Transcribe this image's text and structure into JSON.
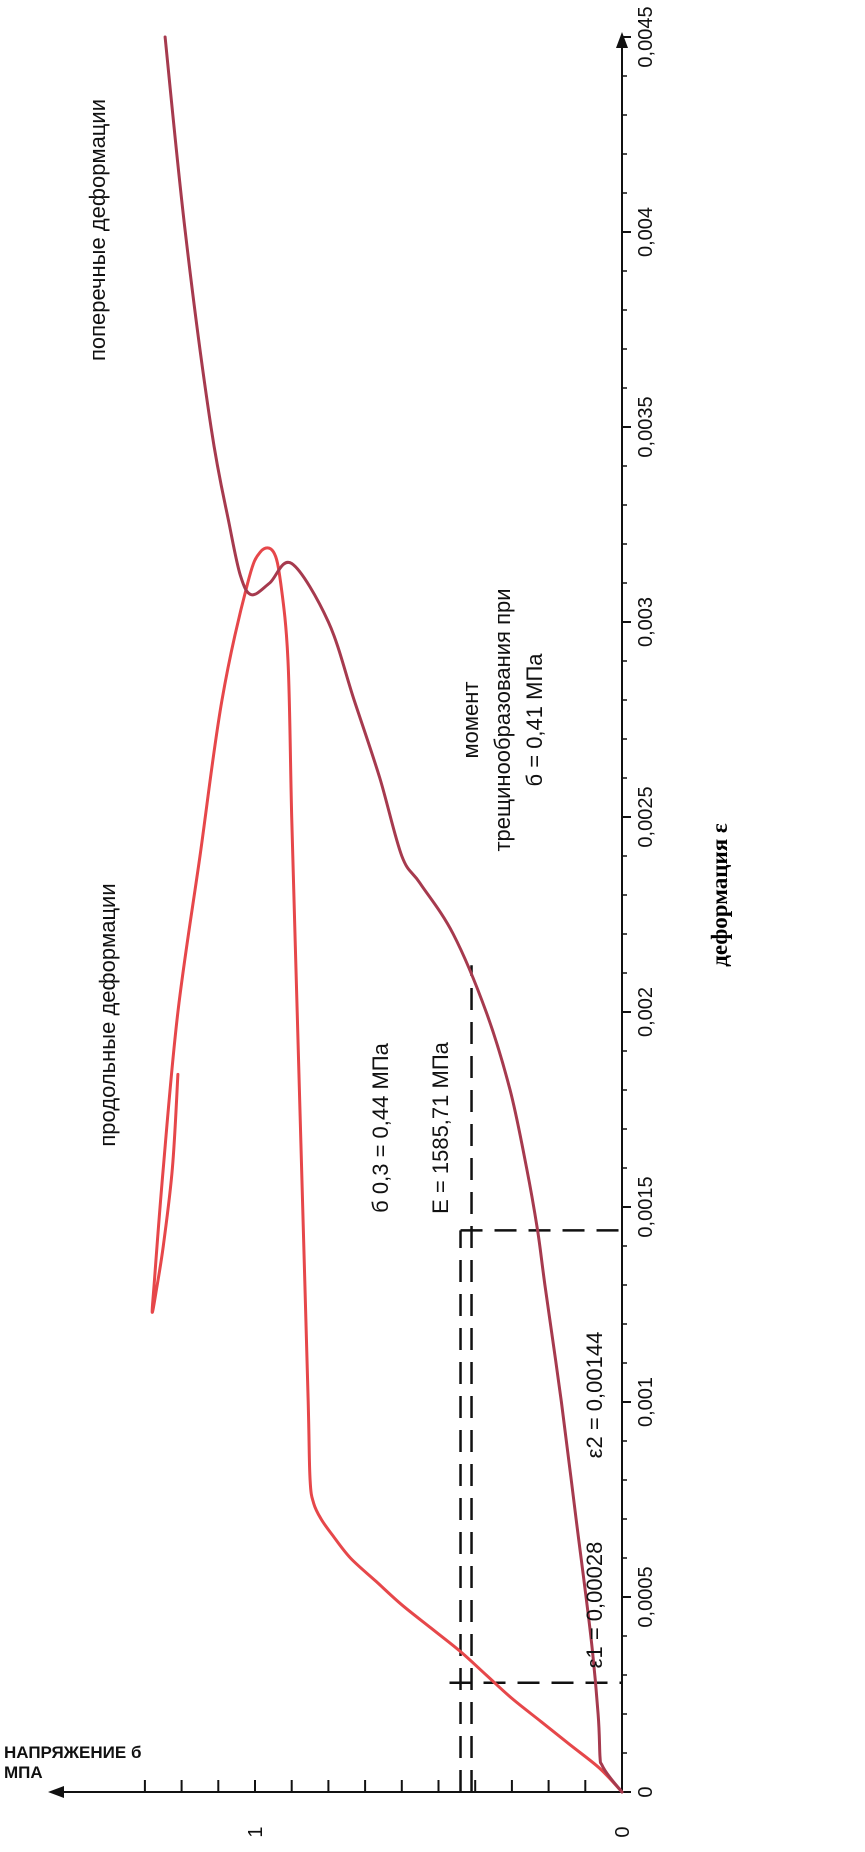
{
  "chart_data": {
    "type": "line",
    "orientation": "rotated 90° counter-clockwise (strain axis runs bottom-to-top)",
    "xlabel": "деформация ε",
    "ylabel_line1": "НАПРЯЖЕНИЕ б",
    "ylabel_line2": "МПА",
    "xlim": [
      0,
      0.0045
    ],
    "ylim": [
      0,
      1.3
    ],
    "x_ticks": [
      "0",
      "0,0005",
      "0,001",
      "0,0015",
      "0,002",
      "0,0025",
      "0,003",
      "0,0035",
      "0,004",
      "0,0045"
    ],
    "y_ticks": [
      "0",
      "1"
    ],
    "series": [
      {
        "name": "продольные деформации",
        "color": "#e6474a",
        "points": [
          [
            0,
            0
          ],
          [
            6e-05,
            0.06
          ],
          [
            0.00012,
            0.14
          ],
          [
            0.00018,
            0.22
          ],
          [
            0.00024,
            0.3
          ],
          [
            0.0003,
            0.37
          ],
          [
            0.00036,
            0.44
          ],
          [
            0.00042,
            0.52
          ],
          [
            0.00048,
            0.6
          ],
          [
            0.00054,
            0.67
          ],
          [
            0.0006,
            0.74
          ],
          [
            0.00066,
            0.79
          ],
          [
            0.0007,
            0.82
          ],
          [
            0.00074,
            0.84
          ],
          [
            0.0008,
            0.85
          ],
          [
            0.001,
            0.855
          ],
          [
            0.0015,
            0.87
          ],
          [
            0.002,
            0.885
          ],
          [
            0.0025,
            0.9
          ],
          [
            0.0029,
            0.91
          ],
          [
            0.0031,
            0.93
          ],
          [
            0.00318,
            0.95
          ],
          [
            0.00318,
            0.985
          ],
          [
            0.0031,
            1.02
          ],
          [
            0.0028,
            1.09
          ],
          [
            0.0024,
            1.15
          ],
          [
            0.002,
            1.21
          ],
          [
            0.0016,
            1.25
          ],
          [
            0.0013,
            1.275
          ],
          [
            0.00123,
            1.28
          ],
          [
            0.00128,
            1.27
          ],
          [
            0.0014,
            1.25
          ],
          [
            0.0016,
            1.225
          ],
          [
            0.00184,
            1.21
          ]
        ]
      },
      {
        "name": "поперечные деформации",
        "color": "#a63a4e",
        "points": [
          [
            0,
            0
          ],
          [
            4e-05,
            0.035
          ],
          [
            7e-05,
            0.055
          ],
          [
            9e-05,
            0.06
          ],
          [
            0.0002,
            0.065
          ],
          [
            0.0004,
            0.085
          ],
          [
            0.0007,
            0.125
          ],
          [
            0.001,
            0.165
          ],
          [
            0.0013,
            0.21
          ],
          [
            0.00144,
            0.23
          ],
          [
            0.0016,
            0.26
          ],
          [
            0.0018,
            0.305
          ],
          [
            0.002,
            0.37
          ],
          [
            0.0022,
            0.46
          ],
          [
            0.00233,
            0.55
          ],
          [
            0.0024,
            0.6
          ],
          [
            0.0026,
            0.66
          ],
          [
            0.0028,
            0.73
          ],
          [
            0.003,
            0.8
          ],
          [
            0.00315,
            0.9
          ],
          [
            0.0031,
            0.96
          ],
          [
            0.00307,
            1.01
          ],
          [
            0.00312,
            1.04
          ],
          [
            0.00325,
            1.07
          ],
          [
            0.0035,
            1.12
          ],
          [
            0.004,
            1.19
          ],
          [
            0.0045,
            1.245
          ]
        ]
      }
    ],
    "guide_lines": {
      "sigma_03": 0.44,
      "sigma_crack": 0.41,
      "eps1": 0.00028,
      "eps2": 0.00144
    },
    "annotations": {
      "sigma03_label": "б 0,3 = 0,44 МПа",
      "modulus_label": "E = 1585,71 МПа",
      "crack_line1": "момент",
      "crack_line2": "трещинообразования при",
      "crack_line3": "б = 0,41 МПа",
      "eps1_label": "ε1 = 0,00028",
      "eps2_label": "ε2 = 0,00144"
    }
  }
}
